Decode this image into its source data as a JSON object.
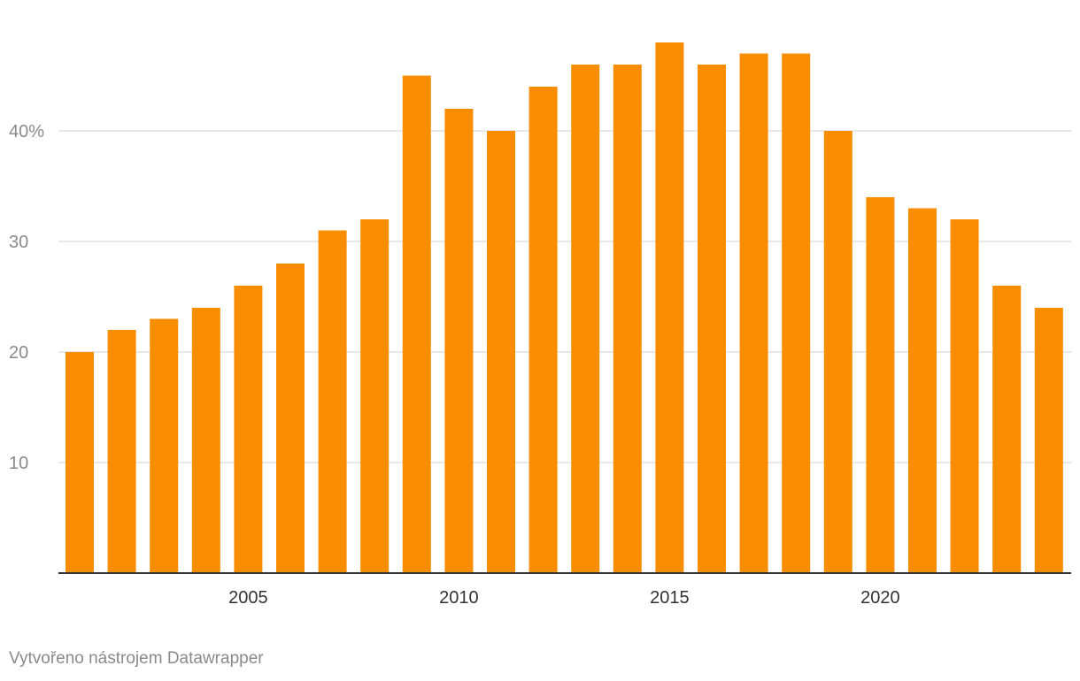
{
  "chart_data": {
    "type": "bar",
    "title": "",
    "xlabel": "",
    "ylabel": "",
    "x": [
      2001,
      2002,
      2003,
      2004,
      2005,
      2006,
      2007,
      2008,
      2009,
      2010,
      2011,
      2012,
      2013,
      2014,
      2015,
      2016,
      2017,
      2018,
      2019,
      2020,
      2021,
      2022,
      2023,
      2024
    ],
    "values": [
      20,
      22,
      23,
      24,
      26,
      28,
      31,
      32,
      45,
      42,
      40,
      44,
      46,
      46,
      48,
      46,
      47,
      47,
      40,
      34,
      33,
      32,
      26,
      24
    ],
    "ylim": [
      0,
      48
    ],
    "y_ticks": [
      {
        "value": 10,
        "label": "10"
      },
      {
        "value": 20,
        "label": "20"
      },
      {
        "value": 30,
        "label": "30"
      },
      {
        "value": 40,
        "label": "40%"
      }
    ],
    "x_ticks": [
      {
        "value": 2005,
        "label": "2005"
      },
      {
        "value": 2010,
        "label": "2010"
      },
      {
        "value": 2015,
        "label": "2015"
      },
      {
        "value": 2020,
        "label": "2020"
      }
    ],
    "grid": true,
    "bar_color": "#f98d00",
    "grid_color": "#e0e0e0",
    "axis_color": "#333333"
  },
  "footer": {
    "credit": "Vytvořeno nástrojem Datawrapper"
  }
}
